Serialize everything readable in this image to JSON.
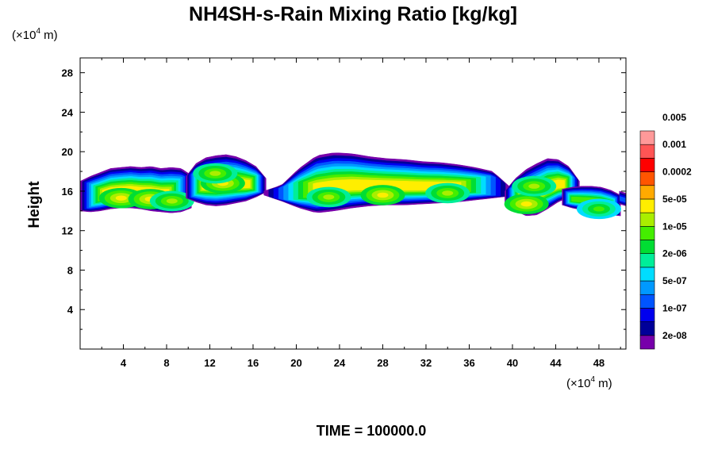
{
  "chart_data": {
    "type": "heatmap",
    "title": "NH4SH-s-Rain Mixing Ratio [kg/kg]",
    "xlabel": "",
    "ylabel": "Height",
    "x_unit": "(×10⁴ m)",
    "y_unit": "(×10⁴ m)",
    "x_unit_parts": {
      "pre": "(×10",
      "sup": "4",
      "post": " m)"
    },
    "y_unit_parts": {
      "pre": "(×10",
      "sup": "4",
      "post": " m)"
    },
    "xlim": [
      0,
      50.5
    ],
    "ylim": [
      0,
      29.5
    ],
    "x_ticks": [
      4,
      8,
      12,
      16,
      20,
      24,
      28,
      32,
      36,
      40,
      44,
      48
    ],
    "x_tick_labels": [
      "4",
      "8",
      "12",
      "16",
      "20",
      "24",
      "28",
      "32",
      "36",
      "40",
      "44",
      "48"
    ],
    "y_ticks": [
      4,
      8,
      12,
      16,
      20,
      24,
      28
    ],
    "y_tick_labels": [
      "4",
      "8",
      "12",
      "16",
      "20",
      "24",
      "28"
    ],
    "grid": false,
    "footer": "TIME = 100000.0",
    "colorbar": {
      "placement": "right",
      "colors": [
        "#7700aa",
        "#000099",
        "#0000ee",
        "#0055ff",
        "#0099ff",
        "#00ddff",
        "#00ee99",
        "#00dd33",
        "#44ee00",
        "#aaee00",
        "#ffee00",
        "#ffaa00",
        "#ff5500",
        "#ff0000",
        "#ff5555",
        "#ff9999"
      ],
      "labels": [
        "2e-08",
        "1e-07",
        "5e-07",
        "2e-06",
        "1e-05",
        "5e-05",
        "0.0002",
        "0.001",
        "0.005"
      ]
    },
    "regions": [
      {
        "name": "left cloud",
        "x_start": 0,
        "x_end": 10.3,
        "top": [
          17.0,
          17.5,
          17.9,
          18.3,
          18.4,
          18.5,
          18.4,
          18.5,
          18.3,
          18.4,
          18.3,
          17.6
        ],
        "bottom": [
          14.0,
          13.9,
          14.0,
          14.2,
          14.3,
          14.3,
          14.2,
          14.0,
          13.9,
          13.8,
          13.9,
          14.3
        ],
        "max_level": 10,
        "core": [
          {
            "x": 3.8,
            "y": 15.3,
            "level": 10
          },
          {
            "x": 6.5,
            "y": 15.2,
            "level": 10
          },
          {
            "x": 8.5,
            "y": 15.0,
            "level": 9
          }
        ]
      },
      {
        "name": "middle-left cloud",
        "x_start": 9.8,
        "x_end": 17.2,
        "top": [
          17.5,
          18.8,
          19.4,
          19.6,
          19.7,
          19.5,
          19.1,
          18.5,
          17.3
        ],
        "bottom": [
          15.3,
          14.9,
          14.6,
          14.5,
          14.6,
          14.8,
          15.0,
          15.4,
          15.9
        ],
        "max_level": 10,
        "core": [
          {
            "x": 13.2,
            "y": 16.8,
            "level": 10
          },
          {
            "x": 12.5,
            "y": 17.8,
            "level": 9
          }
        ]
      },
      {
        "name": "central cloud",
        "x_start": 17.0,
        "x_end": 39.8,
        "top": [
          16.0,
          16.6,
          18.3,
          19.6,
          19.9,
          19.8,
          19.5,
          19.3,
          19.2,
          19.0,
          18.9,
          18.7,
          18.4,
          18.0,
          16.4
        ],
        "bottom": [
          15.6,
          15.0,
          14.3,
          13.8,
          14.0,
          14.3,
          14.5,
          14.6,
          14.6,
          14.7,
          14.8,
          14.9,
          15.1,
          15.3,
          15.5
        ],
        "max_level": 10,
        "core": [
          {
            "x": 28.0,
            "y": 15.6,
            "level": 10
          },
          {
            "x": 23.0,
            "y": 15.4,
            "level": 9
          },
          {
            "x": 34.0,
            "y": 15.8,
            "level": 9
          }
        ]
      },
      {
        "name": "right cloud",
        "x_start": 39.3,
        "x_end": 46.2,
        "top": [
          16.0,
          17.3,
          18.2,
          18.8,
          19.3,
          19.2,
          18.5,
          17.0
        ],
        "bottom": [
          14.8,
          14.0,
          13.5,
          13.6,
          14.2,
          14.9,
          15.4,
          15.9
        ],
        "max_level": 10,
        "core": [
          {
            "x": 41.3,
            "y": 14.7,
            "level": 10
          },
          {
            "x": 42.0,
            "y": 16.5,
            "level": 9
          }
        ]
      },
      {
        "name": "far right cloud",
        "x_start": 44.6,
        "x_end": 50.0,
        "top": [
          16.2,
          16.4,
          16.5,
          16.5,
          16.4,
          16.1,
          15.6
        ],
        "bottom": [
          14.6,
          14.3,
          14.1,
          14.0,
          13.9,
          13.6,
          13.5
        ],
        "max_level": 8,
        "core": [
          {
            "x": 48.0,
            "y": 14.2,
            "level": 8
          }
        ]
      },
      {
        "name": "edge fragment",
        "x_start": 49.9,
        "x_end": 50.5,
        "top": [
          16.0,
          15.9,
          15.8
        ],
        "bottom": [
          14.7,
          14.6,
          14.5
        ],
        "max_level": 3,
        "core": []
      }
    ]
  }
}
